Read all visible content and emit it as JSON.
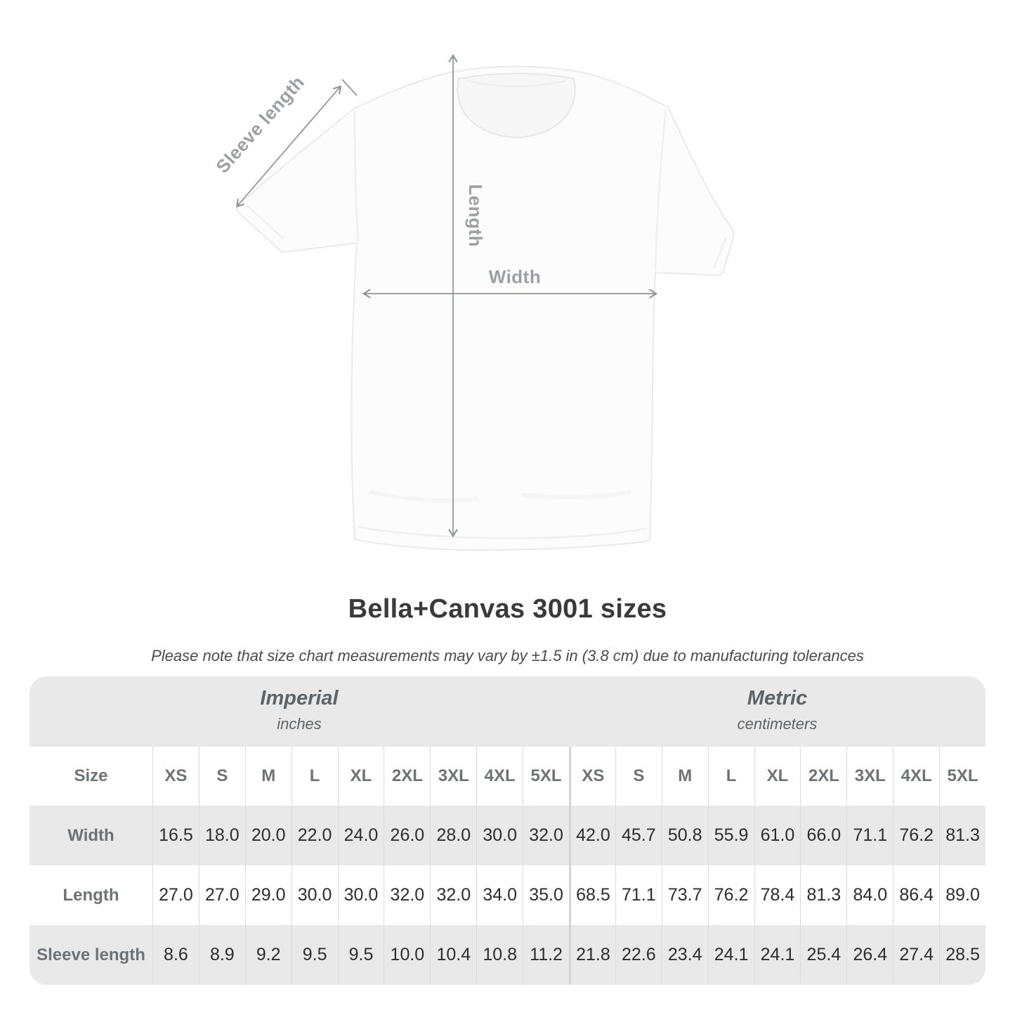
{
  "diagram": {
    "sleeve_label": "Sleeve length",
    "length_label": "Length",
    "width_label": "Width"
  },
  "title": "Bella+Canvas 3001 sizes",
  "subtitle": "Please note that size chart measurements may vary by ±1.5 in (3.8 cm) due to manufacturing tolerances",
  "table": {
    "sections": [
      {
        "name": "Imperial",
        "unit": "inches"
      },
      {
        "name": "Metric",
        "unit": "centimeters"
      }
    ],
    "size_label": "Size",
    "sizes": [
      "XS",
      "S",
      "M",
      "L",
      "XL",
      "2XL",
      "3XL",
      "4XL",
      "5XL"
    ],
    "rows": [
      {
        "label": "Width",
        "imperial": [
          "16.5",
          "18.0",
          "20.0",
          "22.0",
          "24.0",
          "26.0",
          "28.0",
          "30.0",
          "32.0"
        ],
        "metric": [
          "42.0",
          "45.7",
          "50.8",
          "55.9",
          "61.0",
          "66.0",
          "71.1",
          "76.2",
          "81.3"
        ]
      },
      {
        "label": "Length",
        "imperial": [
          "27.0",
          "27.0",
          "29.0",
          "30.0",
          "30.0",
          "32.0",
          "32.0",
          "34.0",
          "35.0"
        ],
        "metric": [
          "68.5",
          "71.1",
          "73.7",
          "76.2",
          "78.4",
          "81.3",
          "84.0",
          "86.4",
          "89.0"
        ]
      },
      {
        "label": "Sleeve length",
        "imperial": [
          "8.6",
          "8.9",
          "9.2",
          "9.5",
          "9.5",
          "10.0",
          "10.4",
          "10.8",
          "11.2"
        ],
        "metric": [
          "21.8",
          "22.6",
          "23.4",
          "24.1",
          "24.1",
          "25.4",
          "26.4",
          "27.4",
          "28.5"
        ]
      }
    ]
  },
  "chart_data": {
    "type": "table",
    "title": "Bella+Canvas 3001 sizes",
    "sections": [
      "Imperial (inches)",
      "Metric (centimeters)"
    ],
    "column_headers": [
      "XS",
      "S",
      "M",
      "L",
      "XL",
      "2XL",
      "3XL",
      "4XL",
      "5XL"
    ],
    "rows": [
      {
        "label": "Width",
        "imperial_in": [
          16.5,
          18.0,
          20.0,
          22.0,
          24.0,
          26.0,
          28.0,
          30.0,
          32.0
        ],
        "metric_cm": [
          42.0,
          45.7,
          50.8,
          55.9,
          61.0,
          66.0,
          71.1,
          76.2,
          81.3
        ]
      },
      {
        "label": "Length",
        "imperial_in": [
          27.0,
          27.0,
          29.0,
          30.0,
          30.0,
          32.0,
          32.0,
          34.0,
          35.0
        ],
        "metric_cm": [
          68.5,
          71.1,
          73.7,
          76.2,
          78.4,
          81.3,
          84.0,
          86.4,
          89.0
        ]
      },
      {
        "label": "Sleeve length",
        "imperial_in": [
          8.6,
          8.9,
          9.2,
          9.5,
          9.5,
          10.0,
          10.4,
          10.8,
          11.2
        ],
        "metric_cm": [
          21.8,
          22.6,
          23.4,
          24.1,
          24.1,
          25.4,
          26.4,
          27.4,
          28.5
        ]
      }
    ]
  },
  "colors": {
    "band_gray": "#e9e9e9",
    "divider": "#dcdcdc",
    "divider_strong": "#d5d5d5",
    "header_text": "#6d7277",
    "value_text": "#2d2d2d",
    "diagram_label": "#9aa0a5",
    "arrow": "#8f9499"
  }
}
